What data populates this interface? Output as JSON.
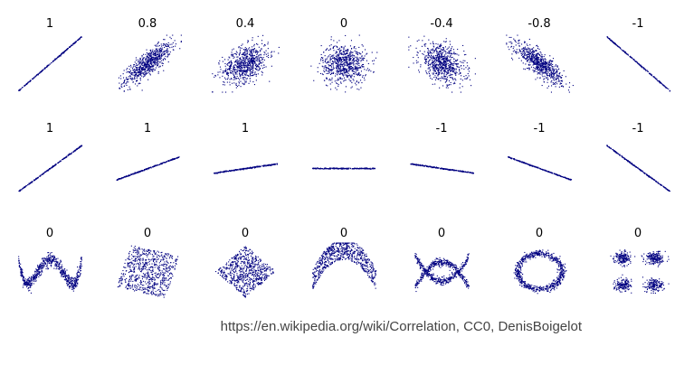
{
  "figure": {
    "credit": "https://en.wikipedia.org/wiki/Correlation, CC0, DenisBoigelot",
    "point_color": "#000080"
  },
  "chart_data": [
    {
      "type": "scatter",
      "title": "",
      "row_label": "",
      "panels": [
        {
          "label": "1",
          "shape": "line",
          "correlation": 1
        },
        {
          "label": "0.8",
          "shape": "gaussian",
          "correlation": 0.8
        },
        {
          "label": "0.4",
          "shape": "gaussian",
          "correlation": 0.4
        },
        {
          "label": "0",
          "shape": "gaussian",
          "correlation": 0
        },
        {
          "label": "-0.4",
          "shape": "gaussian",
          "correlation": -0.4
        },
        {
          "label": "-0.8",
          "shape": "gaussian",
          "correlation": -0.8
        },
        {
          "label": "-1",
          "shape": "line",
          "correlation": -1
        }
      ]
    },
    {
      "type": "scatter",
      "title": "",
      "panels": [
        {
          "label": "1",
          "shape": "line",
          "slope": 1
        },
        {
          "label": "1",
          "shape": "line",
          "slope": 0.5
        },
        {
          "label": "1",
          "shape": "line",
          "slope": 0.2
        },
        {
          "label": "",
          "shape": "line",
          "slope": 0
        },
        {
          "label": "-1",
          "shape": "line",
          "slope": -0.2
        },
        {
          "label": "-1",
          "shape": "line",
          "slope": -0.5
        },
        {
          "label": "-1",
          "shape": "line",
          "slope": -1
        }
      ]
    },
    {
      "type": "scatter",
      "title": "",
      "panels": [
        {
          "label": "0",
          "shape": "wave"
        },
        {
          "label": "0",
          "shape": "rotated-square"
        },
        {
          "label": "0",
          "shape": "diamond"
        },
        {
          "label": "0",
          "shape": "parabola"
        },
        {
          "label": "0",
          "shape": "cross"
        },
        {
          "label": "0",
          "shape": "ring"
        },
        {
          "label": "0",
          "shape": "four-clusters"
        }
      ]
    }
  ]
}
